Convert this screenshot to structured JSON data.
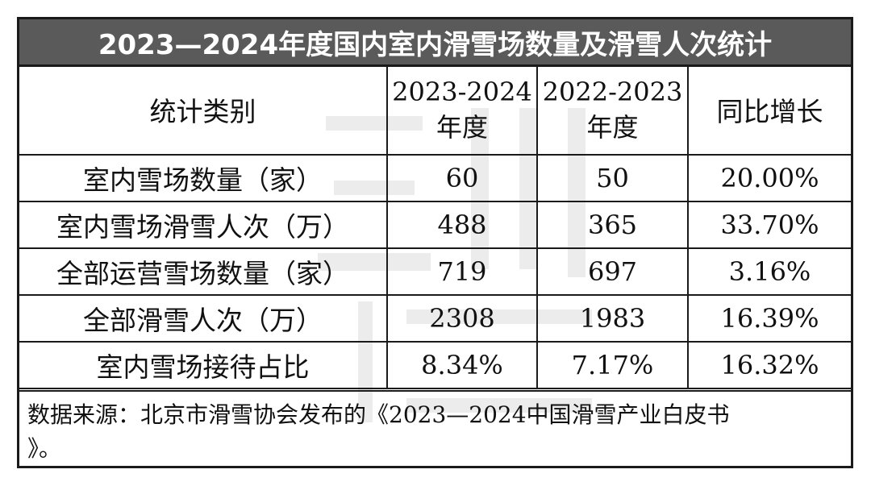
{
  "title": "2023—2024年度国内室内滑雪场数量及滑雪人次统计",
  "headers": {
    "category": "统计类别",
    "col1_line1": "2023-2024",
    "col1_line2": "年度",
    "col2_line1": "2022-2023",
    "col2_line2": "年度",
    "col3": "同比增长"
  },
  "rows": [
    {
      "category": "室内雪场数量（家）",
      "v2024": "60",
      "v2023": "50",
      "growth": "20.00%"
    },
    {
      "category": "室内雪场滑雪人次（万）",
      "v2024": "488",
      "v2023": "365",
      "growth": "33.70%"
    },
    {
      "category": "全部运营雪场数量（家）",
      "v2024": "719",
      "v2023": "697",
      "growth": "3.16%"
    },
    {
      "category": "全部滑雪人次（万）",
      "v2024": "2308",
      "v2023": "1983",
      "growth": "16.39%"
    },
    {
      "category": "室内雪场接待占比",
      "v2024": "8.34%",
      "v2023": "7.17%",
      "growth": "16.32%"
    }
  ],
  "source": {
    "line1": "数据来源：北京市滑雪协会发布的《2023—2024中国滑雪产业白皮书",
    "line2": "》。"
  },
  "colors": {
    "title_background": "#5a5a5a",
    "title_text": "#ffffff",
    "border": "#1a1a1a"
  }
}
